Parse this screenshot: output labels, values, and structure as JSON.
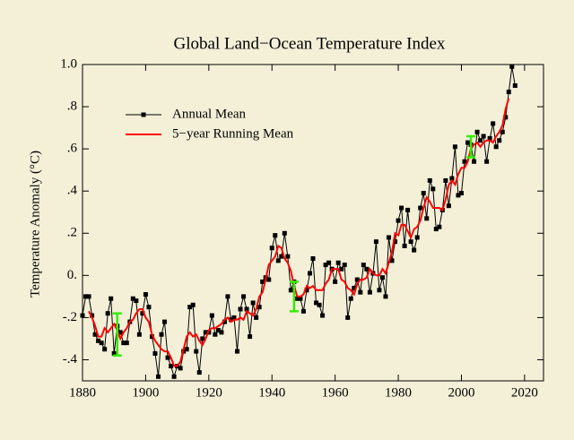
{
  "chart_data": {
    "type": "line",
    "title": "Global Land−Ocean Temperature Index",
    "y_label": "Temperature Anomaly (°C)",
    "x": [
      1880,
      1881,
      1882,
      1883,
      1884,
      1885,
      1886,
      1887,
      1888,
      1889,
      1890,
      1891,
      1892,
      1893,
      1894,
      1895,
      1896,
      1897,
      1898,
      1899,
      1900,
      1901,
      1902,
      1903,
      1904,
      1905,
      1906,
      1907,
      1908,
      1909,
      1910,
      1911,
      1912,
      1913,
      1914,
      1915,
      1916,
      1917,
      1918,
      1919,
      1920,
      1921,
      1922,
      1923,
      1924,
      1925,
      1926,
      1927,
      1928,
      1929,
      1930,
      1931,
      1932,
      1933,
      1934,
      1935,
      1936,
      1937,
      1938,
      1939,
      1940,
      1941,
      1942,
      1943,
      1944,
      1945,
      1946,
      1947,
      1948,
      1949,
      1950,
      1951,
      1952,
      1953,
      1954,
      1955,
      1956,
      1957,
      1958,
      1959,
      1960,
      1961,
      1962,
      1963,
      1964,
      1965,
      1966,
      1967,
      1968,
      1969,
      1970,
      1971,
      1972,
      1973,
      1974,
      1975,
      1976,
      1977,
      1978,
      1979,
      1980,
      1981,
      1982,
      1983,
      1984,
      1985,
      1986,
      1987,
      1988,
      1989,
      1990,
      1991,
      1992,
      1993,
      1994,
      1995,
      1996,
      1997,
      1998,
      1999,
      2000,
      2001,
      2002,
      2003,
      2004,
      2005,
      2006,
      2007,
      2008,
      2009,
      2010,
      2011,
      2012,
      2013,
      2014,
      2015,
      2016,
      2017
    ],
    "series": [
      {
        "name": "Annual Mean",
        "color": "#000000",
        "markers": true,
        "values": [
          -0.19,
          -0.1,
          -0.1,
          -0.19,
          -0.28,
          -0.31,
          -0.32,
          -0.35,
          -0.18,
          -0.11,
          -0.37,
          -0.24,
          -0.27,
          -0.32,
          -0.32,
          -0.22,
          -0.11,
          -0.12,
          -0.28,
          -0.18,
          -0.09,
          -0.15,
          -0.29,
          -0.37,
          -0.48,
          -0.28,
          -0.22,
          -0.39,
          -0.43,
          -0.48,
          -0.43,
          -0.44,
          -0.36,
          -0.35,
          -0.15,
          -0.14,
          -0.36,
          -0.46,
          -0.3,
          -0.27,
          -0.27,
          -0.19,
          -0.28,
          -0.26,
          -0.27,
          -0.22,
          -0.1,
          -0.21,
          -0.2,
          -0.36,
          -0.16,
          -0.1,
          -0.16,
          -0.29,
          -0.13,
          -0.2,
          -0.15,
          -0.03,
          -0.01,
          -0.02,
          0.13,
          0.19,
          0.07,
          0.09,
          0.2,
          0.09,
          -0.07,
          -0.03,
          -0.11,
          -0.11,
          -0.17,
          -0.07,
          0.01,
          0.08,
          -0.13,
          -0.14,
          -0.19,
          0.05,
          0.06,
          0.03,
          -0.03,
          0.06,
          0.03,
          0.05,
          -0.2,
          -0.11,
          -0.06,
          -0.02,
          -0.08,
          0.05,
          0.03,
          -0.08,
          0.01,
          0.16,
          -0.07,
          -0.01,
          -0.1,
          0.18,
          0.07,
          0.16,
          0.26,
          0.32,
          0.14,
          0.31,
          0.16,
          0.12,
          0.18,
          0.32,
          0.39,
          0.27,
          0.45,
          0.41,
          0.22,
          0.23,
          0.31,
          0.45,
          0.33,
          0.46,
          0.61,
          0.38,
          0.39,
          0.54,
          0.63,
          0.62,
          0.54,
          0.68,
          0.64,
          0.66,
          0.54,
          0.65,
          0.72,
          0.61,
          0.64,
          0.68,
          0.75,
          0.87,
          0.99,
          0.9
        ]
      },
      {
        "name": "5−year Running Mean",
        "color": "#ff0000",
        "markers": false,
        "values": [
          null,
          null,
          -0.17,
          -0.2,
          -0.24,
          -0.29,
          -0.29,
          -0.25,
          -0.27,
          -0.25,
          -0.23,
          -0.26,
          -0.3,
          -0.27,
          -0.25,
          -0.22,
          -0.21,
          -0.18,
          -0.16,
          -0.16,
          -0.2,
          -0.22,
          -0.28,
          -0.31,
          -0.33,
          -0.35,
          -0.36,
          -0.36,
          -0.39,
          -0.43,
          -0.43,
          -0.41,
          -0.35,
          -0.29,
          -0.27,
          -0.29,
          -0.28,
          -0.31,
          -0.33,
          -0.3,
          -0.26,
          -0.25,
          -0.25,
          -0.24,
          -0.23,
          -0.21,
          -0.2,
          -0.22,
          -0.21,
          -0.21,
          -0.2,
          -0.21,
          -0.17,
          -0.18,
          -0.19,
          -0.16,
          -0.1,
          -0.08,
          -0.02,
          0.05,
          0.07,
          0.09,
          0.14,
          0.13,
          0.08,
          0.06,
          0.02,
          -0.05,
          -0.1,
          -0.1,
          -0.09,
          -0.05,
          -0.06,
          -0.05,
          -0.07,
          -0.07,
          -0.07,
          -0.04,
          -0.02,
          0.03,
          0.03,
          0.03,
          -0.02,
          -0.03,
          -0.06,
          -0.07,
          -0.09,
          -0.04,
          -0.02,
          -0.02,
          -0.01,
          0.03,
          0.01,
          0.0,
          0.0,
          0.03,
          0.01,
          0.06,
          0.11,
          0.2,
          0.19,
          0.24,
          0.24,
          0.21,
          0.18,
          0.22,
          0.23,
          0.26,
          0.32,
          0.37,
          0.35,
          0.32,
          0.32,
          0.32,
          0.31,
          0.36,
          0.43,
          0.45,
          0.43,
          0.48,
          0.51,
          0.51,
          0.54,
          0.6,
          0.62,
          0.63,
          0.61,
          0.63,
          0.64,
          0.64,
          0.63,
          0.66,
          0.68,
          0.71,
          0.79,
          0.84,
          null,
          null
        ]
      }
    ],
    "uncertainty_bars": {
      "color": "#33ee00",
      "x": [
        1891,
        1947,
        2003
      ],
      "low": [
        -0.38,
        -0.17,
        0.56
      ],
      "high": [
        -0.18,
        -0.03,
        0.66
      ]
    },
    "xlim": [
      1880,
      2026
    ],
    "xticks": [
      1880,
      1900,
      1920,
      1940,
      1960,
      1980,
      2000,
      2020
    ],
    "ylim": [
      -0.5,
      1.0
    ],
    "yticks": [
      {
        "value": -0.4,
        "label": "-.4"
      },
      {
        "value": -0.2,
        "label": "-.2"
      },
      {
        "value": 0,
        "label": "0."
      },
      {
        "value": 0.2,
        "label": ".2"
      },
      {
        "value": 0.4,
        "label": ".4"
      },
      {
        "value": 0.6,
        "label": ".6"
      },
      {
        "value": 0.8,
        "label": ".8"
      },
      {
        "value": 1.0,
        "label": "1.0"
      }
    ],
    "legend": "upper-left",
    "background": "#f4f0d8"
  }
}
